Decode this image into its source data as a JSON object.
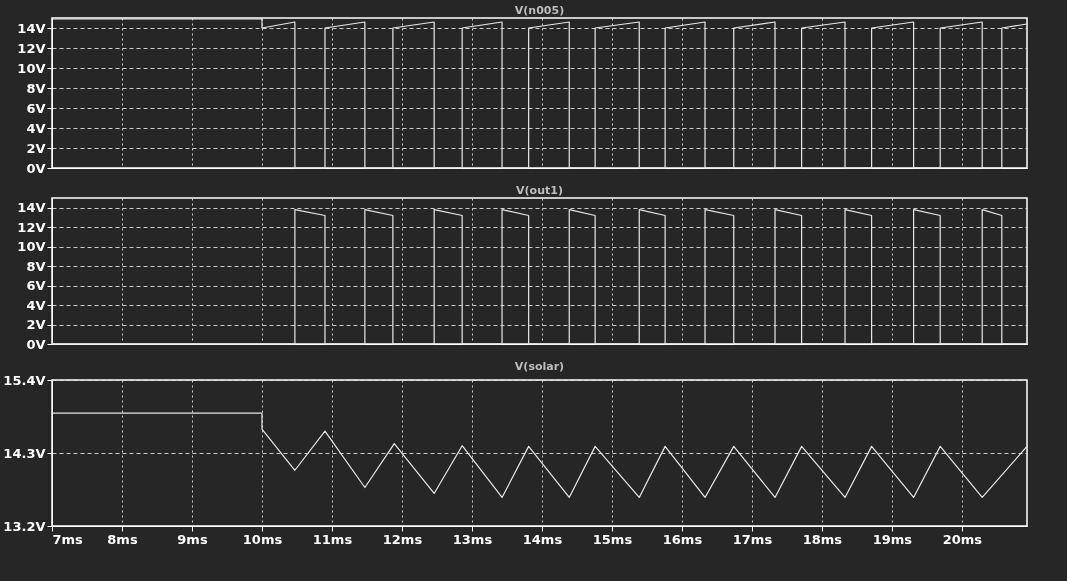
{
  "chart_data": [
    {
      "type": "line",
      "title": "V(n005)",
      "xlim": [
        7,
        20.93
      ],
      "xticks": [
        {
          "value": 7,
          "label": null
        },
        {
          "value": 8,
          "label": null
        },
        {
          "value": 9,
          "label": null
        },
        {
          "value": 10,
          "label": null
        },
        {
          "value": 11,
          "label": null
        },
        {
          "value": 12,
          "label": null
        },
        {
          "value": 13,
          "label": null
        },
        {
          "value": 14,
          "label": null
        },
        {
          "value": 15,
          "label": null
        },
        {
          "value": 16,
          "label": null
        },
        {
          "value": 17,
          "label": null
        },
        {
          "value": 18,
          "label": null
        },
        {
          "value": 19,
          "label": null
        },
        {
          "value": 20,
          "label": null
        }
      ],
      "ylim": [
        0,
        15
      ],
      "yticks": [
        {
          "value": 0,
          "label": "0V"
        },
        {
          "value": 2,
          "label": "2V"
        },
        {
          "value": 4,
          "label": "4V"
        },
        {
          "value": 6,
          "label": "6V"
        },
        {
          "value": 8,
          "label": "8V"
        },
        {
          "value": 10,
          "label": "10V"
        },
        {
          "value": 12,
          "label": "12V"
        },
        {
          "value": 14,
          "label": "14V"
        }
      ],
      "grid": true,
      "tick_labels": "y",
      "series": [
        {
          "color": "#e8e8e8",
          "x": [
            7,
            10,
            10,
            10.47,
            10.47,
            10.9,
            10.9,
            11.47,
            11.47,
            11.87,
            11.87,
            12.46,
            12.46,
            12.86,
            12.86,
            13.43,
            13.43,
            13.81,
            13.81,
            14.39,
            14.39,
            14.76,
            14.76,
            15.39,
            15.39,
            15.76,
            15.76,
            16.33,
            16.33,
            16.74,
            16.74,
            17.33,
            17.33,
            17.71,
            17.71,
            18.33,
            18.33,
            18.71,
            18.71,
            19.31,
            19.31,
            19.69,
            19.69,
            20.29,
            20.29,
            20.57,
            20.57,
            20.93
          ],
          "values": [
            14.9,
            14.9,
            14,
            14.6,
            0,
            0,
            14,
            14.6,
            0,
            0,
            14,
            14.6,
            0,
            0,
            14,
            14.6,
            0,
            0,
            14,
            14.6,
            0,
            0,
            14,
            14.6,
            0,
            0,
            14,
            14.6,
            0,
            0,
            14,
            14.6,
            0,
            0,
            14,
            14.6,
            0,
            0,
            14,
            14.6,
            0,
            0,
            14,
            14.6,
            0,
            0,
            14,
            14.4
          ]
        }
      ]
    },
    {
      "type": "line",
      "title": "V(out1)",
      "xlim": [
        7,
        20.93
      ],
      "xticks": [
        {
          "value": 7,
          "label": null
        },
        {
          "value": 8,
          "label": null
        },
        {
          "value": 9,
          "label": null
        },
        {
          "value": 10,
          "label": null
        },
        {
          "value": 11,
          "label": null
        },
        {
          "value": 12,
          "label": null
        },
        {
          "value": 13,
          "label": null
        },
        {
          "value": 14,
          "label": null
        },
        {
          "value": 15,
          "label": null
        },
        {
          "value": 16,
          "label": null
        },
        {
          "value": 17,
          "label": null
        },
        {
          "value": 18,
          "label": null
        },
        {
          "value": 19,
          "label": null
        },
        {
          "value": 20,
          "label": null
        }
      ],
      "ylim": [
        0,
        15
      ],
      "yticks": [
        {
          "value": 0,
          "label": "0V"
        },
        {
          "value": 2,
          "label": "2V"
        },
        {
          "value": 4,
          "label": "4V"
        },
        {
          "value": 6,
          "label": "6V"
        },
        {
          "value": 8,
          "label": "8V"
        },
        {
          "value": 10,
          "label": "10V"
        },
        {
          "value": 12,
          "label": "12V"
        },
        {
          "value": 14,
          "label": "14V"
        }
      ],
      "grid": true,
      "tick_labels": "y",
      "series": [
        {
          "color": "#e8e8e8",
          "x": [
            7,
            10.47,
            10.47,
            10.9,
            10.9,
            11.47,
            11.47,
            11.87,
            11.87,
            12.46,
            12.46,
            12.86,
            12.86,
            13.43,
            13.43,
            13.81,
            13.81,
            14.39,
            14.39,
            14.76,
            14.76,
            15.39,
            15.39,
            15.76,
            15.76,
            16.33,
            16.33,
            16.74,
            16.74,
            17.33,
            17.33,
            17.71,
            17.71,
            18.33,
            18.33,
            18.71,
            18.71,
            19.31,
            19.31,
            19.69,
            19.69,
            20.29,
            20.29,
            20.57,
            20.57,
            20.93
          ],
          "values": [
            0,
            0,
            13.8,
            13.2,
            0,
            0,
            13.8,
            13.2,
            0,
            0,
            13.8,
            13.2,
            0,
            0,
            13.8,
            13.2,
            0,
            0,
            13.8,
            13.2,
            0,
            0,
            13.8,
            13.2,
            0,
            0,
            13.8,
            13.2,
            0,
            0,
            13.8,
            13.2,
            0,
            0,
            13.8,
            13.2,
            0,
            0,
            13.8,
            13.2,
            0,
            0,
            13.8,
            13.2,
            0,
            0
          ]
        }
      ]
    },
    {
      "type": "line",
      "title": "V(solar)",
      "xlim": [
        7,
        20.93
      ],
      "xticks": [
        {
          "value": 7,
          "label": "7ms"
        },
        {
          "value": 8,
          "label": "8ms"
        },
        {
          "value": 9,
          "label": "9ms"
        },
        {
          "value": 10,
          "label": "10ms"
        },
        {
          "value": 11,
          "label": "11ms"
        },
        {
          "value": 12,
          "label": "12ms"
        },
        {
          "value": 13,
          "label": "13ms"
        },
        {
          "value": 14,
          "label": "14ms"
        },
        {
          "value": 15,
          "label": "15ms"
        },
        {
          "value": 16,
          "label": "16ms"
        },
        {
          "value": 17,
          "label": "17ms"
        },
        {
          "value": 18,
          "label": "18ms"
        },
        {
          "value": 19,
          "label": "19ms"
        },
        {
          "value": 20,
          "label": "20ms"
        }
      ],
      "ylim": [
        13.2,
        15.4
      ],
      "yticks": [
        {
          "value": 13.2,
          "label": "13.2V"
        },
        {
          "value": 14.3,
          "label": "14.3V"
        },
        {
          "value": 15.4,
          "label": "15.4V"
        }
      ],
      "grid": true,
      "series": [
        {
          "color": "#e8e8e8",
          "x": [
            7,
            10,
            10,
            10.47,
            10.9,
            11.47,
            11.89,
            12.46,
            12.86,
            13.43,
            13.81,
            14.39,
            14.76,
            15.39,
            15.76,
            16.33,
            16.74,
            17.33,
            17.71,
            18.33,
            18.71,
            19.31,
            19.69,
            20.29,
            20.93
          ],
          "values": [
            14.9,
            14.9,
            14.66,
            14.04,
            14.63,
            13.78,
            14.44,
            13.69,
            14.41,
            13.63,
            14.4,
            13.63,
            14.4,
            13.63,
            14.4,
            13.63,
            14.4,
            13.63,
            14.4,
            13.63,
            14.4,
            13.63,
            14.4,
            13.63,
            14.4
          ]
        }
      ]
    }
  ]
}
